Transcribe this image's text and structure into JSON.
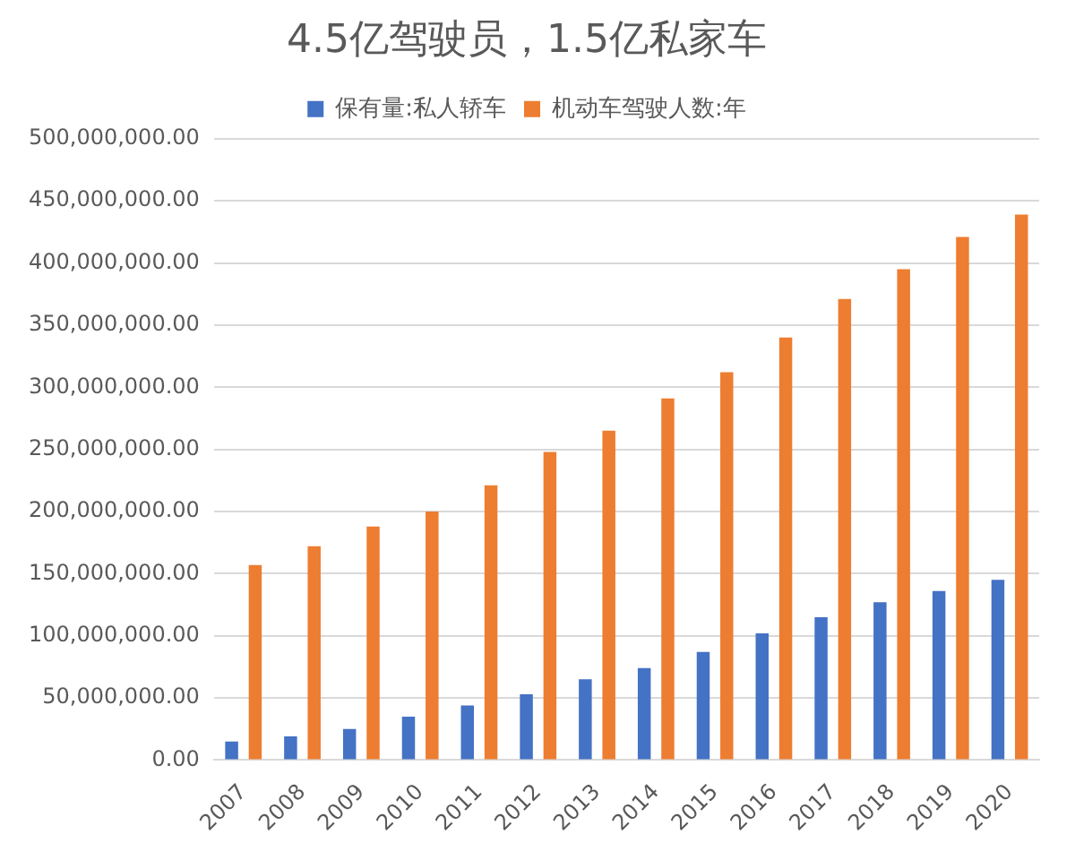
{
  "chart_data": {
    "type": "bar",
    "title": "4.5亿驾驶员，1.5亿私家车",
    "categories": [
      "2007",
      "2008",
      "2009",
      "2010",
      "2011",
      "2012",
      "2013",
      "2014",
      "2015",
      "2016",
      "2017",
      "2018",
      "2019",
      "2020"
    ],
    "series": [
      {
        "name": "保有量:私人轿车",
        "color": "#4472c4",
        "values": [
          15000000,
          19000000,
          25000000,
          35000000,
          44000000,
          53000000,
          65000000,
          74000000,
          87000000,
          102000000,
          115000000,
          127000000,
          136000000,
          145000000
        ]
      },
      {
        "name": "机动车驾驶人数:年",
        "color": "#ed7d31",
        "values": [
          157000000,
          172000000,
          188000000,
          200000000,
          221000000,
          248000000,
          265000000,
          291000000,
          312000000,
          340000000,
          371000000,
          395000000,
          421000000,
          439000000
        ]
      }
    ],
    "ylim": [
      0,
      500000000
    ],
    "yticks": [
      {
        "value": 0,
        "label": "0.00"
      },
      {
        "value": 50000000,
        "label": "50,000,000.00"
      },
      {
        "value": 100000000,
        "label": "100,000,000.00"
      },
      {
        "value": 150000000,
        "label": "150,000,000.00"
      },
      {
        "value": 200000000,
        "label": "200,000,000.00"
      },
      {
        "value": 250000000,
        "label": "250,000,000.00"
      },
      {
        "value": 300000000,
        "label": "300,000,000.00"
      },
      {
        "value": 350000000,
        "label": "350,000,000.00"
      },
      {
        "value": 400000000,
        "label": "400,000,000.00"
      },
      {
        "value": 450000000,
        "label": "450,000,000.00"
      },
      {
        "value": 500000000,
        "label": "500,000,000.00"
      }
    ],
    "grid": "y",
    "legend": "top"
  }
}
